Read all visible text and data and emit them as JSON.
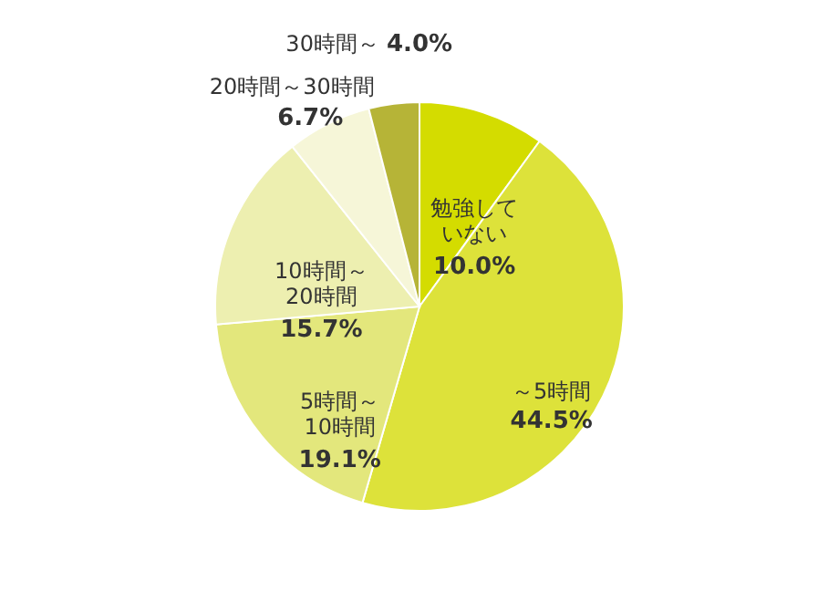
{
  "chart_data": {
    "type": "pie",
    "categories": [
      "勉強していない",
      "～5時間",
      "5時間～10時間",
      "10時間～20時間",
      "20時間～30時間",
      "30時間～"
    ],
    "values": [
      10.0,
      44.5,
      19.1,
      15.7,
      6.7,
      4.0
    ],
    "value_labels": [
      "10.0%",
      "44.5%",
      "19.1%",
      "15.7%",
      "6.7%",
      "4.0%"
    ],
    "colors": [
      "#d4dc00",
      "#dde23a",
      "#e3e77c",
      "#edefb0",
      "#f6f6d8",
      "#b6b437"
    ]
  }
}
